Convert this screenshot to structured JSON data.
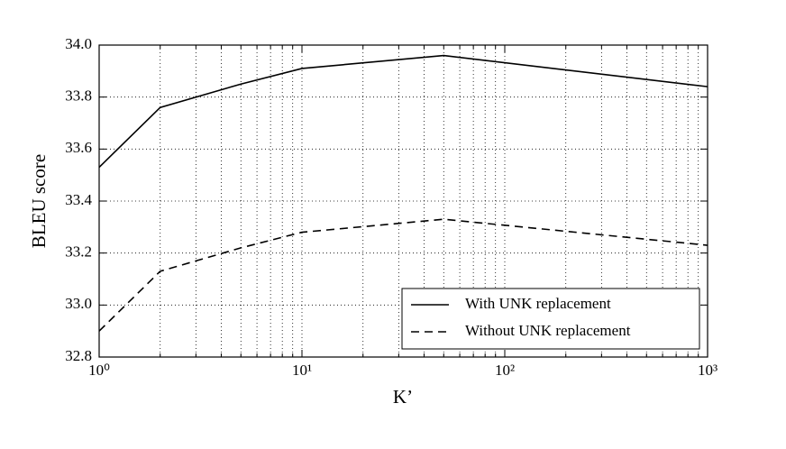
{
  "chart_data": {
    "type": "line",
    "xlabel": "K’",
    "ylabel": "BLEU score",
    "xscale": "log",
    "x": [
      1,
      2,
      5,
      10,
      50,
      1000
    ],
    "series": [
      {
        "name": "With UNK replacement",
        "color": "#000000",
        "linestyle": "solid",
        "values": [
          33.53,
          33.76,
          33.85,
          33.91,
          33.96,
          33.84
        ]
      },
      {
        "name": "Without UNK replacement",
        "color": "#000000",
        "linestyle": "dashed",
        "values": [
          32.9,
          33.13,
          33.22,
          33.28,
          33.33,
          33.23
        ]
      }
    ],
    "xlim": [
      1,
      1000
    ],
    "xticks": [
      {
        "value": 1,
        "label": "10⁰"
      },
      {
        "value": 10,
        "label": "10¹"
      },
      {
        "value": 100,
        "label": "10²"
      },
      {
        "value": 1000,
        "label": "10³"
      }
    ],
    "xminorticks": [
      2,
      3,
      4,
      5,
      6,
      7,
      8,
      9,
      20,
      30,
      40,
      50,
      60,
      70,
      80,
      90,
      200,
      300,
      400,
      500,
      600,
      700,
      800,
      900
    ],
    "ylim": [
      32.8,
      34.0
    ],
    "yticks": [
      32.8,
      {
        "value": 33,
        "label": "33.0"
      },
      33.2,
      33.4,
      33.6,
      33.8,
      {
        "value": 34,
        "label": "34.0"
      }
    ],
    "grid": true,
    "legend": "lower right"
  }
}
